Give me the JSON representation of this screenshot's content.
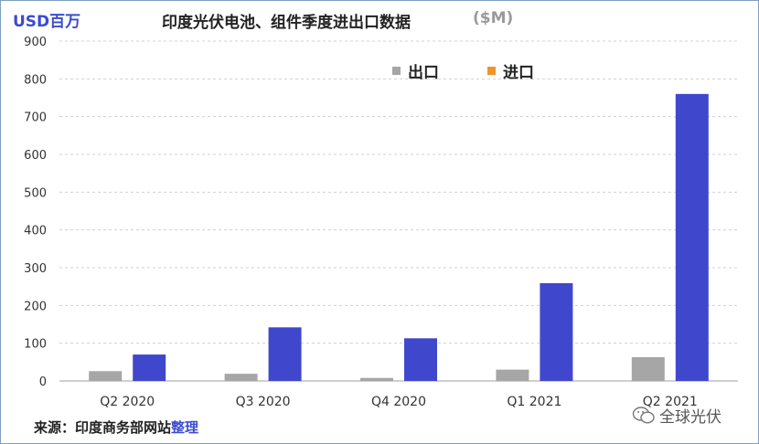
{
  "header": {
    "unit_label": "USD百万",
    "title": "印度光伏电池、组件季度进出口数据",
    "title_unit": "($M)"
  },
  "legend": [
    {
      "label": "出口",
      "color": "#a6a6a6"
    },
    {
      "label": "进口",
      "color": "#f0932b"
    }
  ],
  "footer": {
    "source_prefix": "来源：印度商务部网站",
    "source_link": "整理",
    "watermark": "全球光伏",
    "watermark_icon": "wechat-icon"
  },
  "chart_data": {
    "type": "bar",
    "title": "印度光伏电池、组件季度进出口数据",
    "categories": [
      "Q2 2020",
      "Q3 2020",
      "Q4 2020",
      "Q1 2021",
      "Q2 2021"
    ],
    "series": [
      {
        "name": "出口",
        "color": "#a6a6a6",
        "values": [
          26,
          19,
          8,
          30,
          63
        ]
      },
      {
        "name": "进口",
        "color": "#3f48cc",
        "values": [
          70,
          142,
          113,
          259,
          760
        ]
      }
    ],
    "ylim": [
      0,
      900
    ],
    "yticks": [
      0,
      100,
      200,
      300,
      400,
      500,
      600,
      700,
      800,
      900
    ],
    "grid": true,
    "legend_position": "top-right"
  }
}
